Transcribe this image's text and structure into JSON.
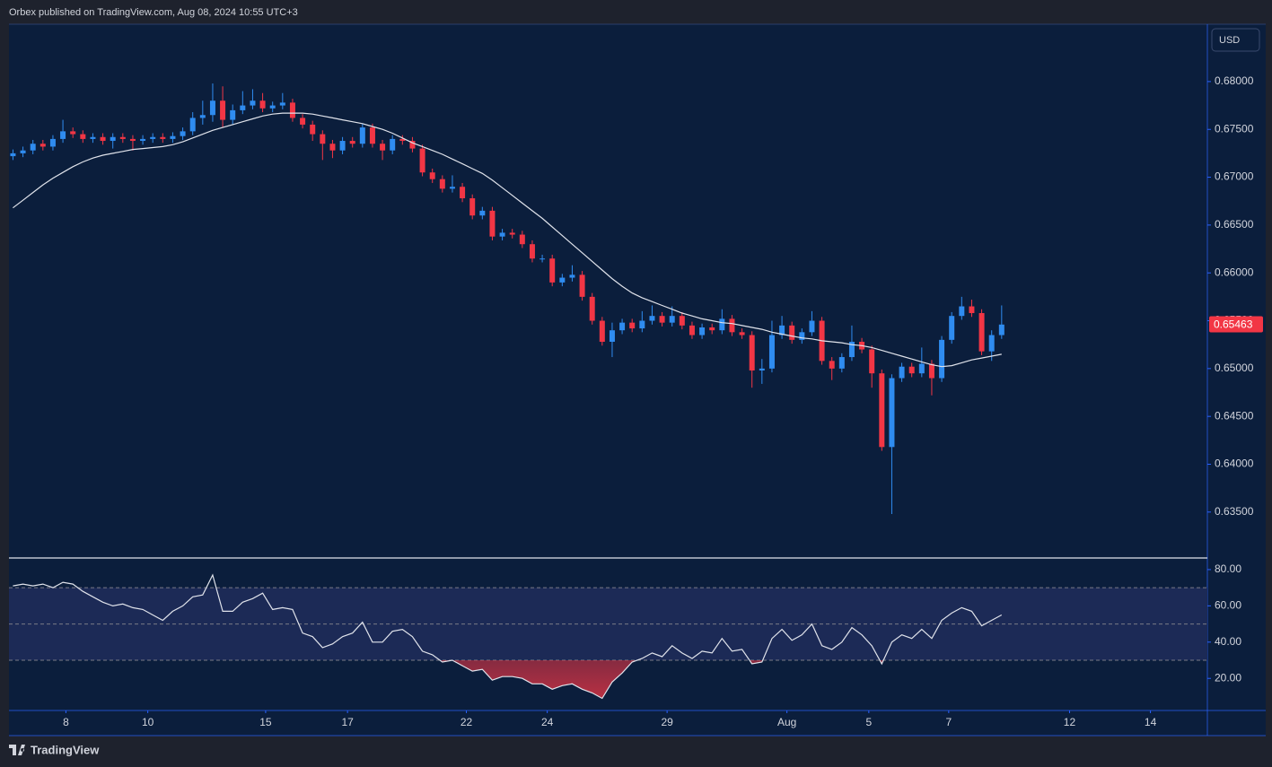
{
  "header": {
    "publisher": "Orbex published on TradingView.com, Aug 08, 2024 10:55 UTC+3",
    "currency": "USD"
  },
  "footer": {
    "brand": "TradingView"
  },
  "chart_data": [
    {
      "type": "candlestick",
      "up_color": "#2f8cf0",
      "down_color": "#f23645",
      "open": [
        0.6722,
        0.6725,
        0.6728,
        0.6735,
        0.6732,
        0.674,
        0.6748,
        0.6745,
        0.674,
        0.6742,
        0.6738,
        0.6742,
        0.674,
        0.6738,
        0.674,
        0.6742,
        0.674,
        0.6743,
        0.6748,
        0.6762,
        0.6765,
        0.678,
        0.676,
        0.677,
        0.6775,
        0.678,
        0.6772,
        0.6775,
        0.6778,
        0.6762,
        0.6755,
        0.6745,
        0.6735,
        0.6728,
        0.6738,
        0.6735,
        0.6752,
        0.6735,
        0.6728,
        0.674,
        0.6738,
        0.673,
        0.6705,
        0.6698,
        0.6688,
        0.669,
        0.6678,
        0.666,
        0.6665,
        0.6638,
        0.6642,
        0.664,
        0.663,
        0.6615,
        0.6615,
        0.659,
        0.6595,
        0.6598,
        0.6575,
        0.655,
        0.6528,
        0.654,
        0.6548,
        0.6542,
        0.655,
        0.6555,
        0.6548,
        0.6555,
        0.6545,
        0.6535,
        0.6543,
        0.654,
        0.6552,
        0.6538,
        0.6535,
        0.6498,
        0.65,
        0.6535,
        0.6545,
        0.653,
        0.6538,
        0.655,
        0.6508,
        0.65,
        0.6512,
        0.6528,
        0.652,
        0.6495,
        0.6418,
        0.649,
        0.6502,
        0.6495,
        0.6505,
        0.649,
        0.653,
        0.6555,
        0.6565,
        0.6558,
        0.6518,
        0.6535
      ],
      "high": [
        0.6729,
        0.6732,
        0.6739,
        0.6739,
        0.6744,
        0.676,
        0.6752,
        0.6749,
        0.6746,
        0.6746,
        0.6746,
        0.6746,
        0.6744,
        0.6744,
        0.6746,
        0.6746,
        0.6747,
        0.6752,
        0.6768,
        0.678,
        0.6798,
        0.6795,
        0.6776,
        0.679,
        0.6792,
        0.6788,
        0.6779,
        0.6788,
        0.6782,
        0.6766,
        0.6759,
        0.6749,
        0.6739,
        0.6742,
        0.6742,
        0.6756,
        0.6756,
        0.6739,
        0.6744,
        0.6744,
        0.6742,
        0.6734,
        0.6709,
        0.6702,
        0.6702,
        0.6694,
        0.6682,
        0.6669,
        0.6669,
        0.6646,
        0.6646,
        0.6644,
        0.6634,
        0.6619,
        0.6619,
        0.6599,
        0.6608,
        0.6602,
        0.6579,
        0.6554,
        0.6548,
        0.6552,
        0.6552,
        0.656,
        0.6566,
        0.6559,
        0.6565,
        0.6559,
        0.6549,
        0.6547,
        0.6547,
        0.6562,
        0.6556,
        0.6542,
        0.6539,
        0.651,
        0.655,
        0.6555,
        0.6549,
        0.6542,
        0.656,
        0.6554,
        0.6512,
        0.6516,
        0.6545,
        0.6532,
        0.6524,
        0.6499,
        0.6494,
        0.6506,
        0.6506,
        0.6522,
        0.6509,
        0.6534,
        0.6559,
        0.6575,
        0.6572,
        0.6562,
        0.654,
        0.6566
      ],
      "low": [
        0.6718,
        0.6721,
        0.6724,
        0.6728,
        0.6728,
        0.6736,
        0.6741,
        0.6736,
        0.6736,
        0.6734,
        0.673,
        0.6736,
        0.6728,
        0.6734,
        0.6736,
        0.6736,
        0.6736,
        0.6739,
        0.6744,
        0.6755,
        0.6758,
        0.6752,
        0.6755,
        0.6766,
        0.6771,
        0.6768,
        0.6768,
        0.6771,
        0.6758,
        0.6751,
        0.6738,
        0.6718,
        0.672,
        0.6724,
        0.6731,
        0.6731,
        0.6731,
        0.6718,
        0.6724,
        0.6734,
        0.6726,
        0.6701,
        0.6694,
        0.6684,
        0.6684,
        0.6674,
        0.6656,
        0.6656,
        0.6634,
        0.6634,
        0.6636,
        0.6626,
        0.6611,
        0.6611,
        0.6586,
        0.6586,
        0.6591,
        0.6571,
        0.6546,
        0.6524,
        0.6512,
        0.6536,
        0.6538,
        0.6538,
        0.6546,
        0.6544,
        0.6544,
        0.6541,
        0.6531,
        0.6531,
        0.6536,
        0.6536,
        0.6534,
        0.6531,
        0.648,
        0.6484,
        0.6496,
        0.6531,
        0.6526,
        0.6526,
        0.6534,
        0.6504,
        0.6488,
        0.6496,
        0.6508,
        0.6516,
        0.648,
        0.6414,
        0.6348,
        0.6486,
        0.6491,
        0.6491,
        0.6472,
        0.6486,
        0.6526,
        0.6551,
        0.6554,
        0.6514,
        0.6508,
        0.6531
      ],
      "close": [
        0.6725,
        0.6728,
        0.6735,
        0.6732,
        0.674,
        0.6748,
        0.6745,
        0.674,
        0.6742,
        0.6738,
        0.6742,
        0.674,
        0.6738,
        0.674,
        0.6742,
        0.674,
        0.6743,
        0.6748,
        0.6762,
        0.6765,
        0.678,
        0.676,
        0.677,
        0.6775,
        0.678,
        0.6772,
        0.6775,
        0.6778,
        0.6762,
        0.6755,
        0.6745,
        0.6735,
        0.6728,
        0.6738,
        0.6735,
        0.6752,
        0.6735,
        0.6728,
        0.674,
        0.6738,
        0.673,
        0.6705,
        0.6698,
        0.6688,
        0.669,
        0.6678,
        0.666,
        0.6665,
        0.6638,
        0.6642,
        0.664,
        0.663,
        0.6615,
        0.6615,
        0.659,
        0.6595,
        0.6598,
        0.6575,
        0.655,
        0.6528,
        0.654,
        0.6548,
        0.6542,
        0.655,
        0.6555,
        0.6548,
        0.6555,
        0.6545,
        0.6535,
        0.6543,
        0.654,
        0.6552,
        0.6538,
        0.6535,
        0.6498,
        0.65,
        0.6535,
        0.6545,
        0.653,
        0.6538,
        0.655,
        0.6508,
        0.65,
        0.6512,
        0.6528,
        0.652,
        0.6495,
        0.6418,
        0.649,
        0.6502,
        0.6495,
        0.6505,
        0.649,
        0.653,
        0.6555,
        0.6565,
        0.6558,
        0.6518,
        0.6535,
        0.6546
      ],
      "overlays": [
        {
          "color": "#e0e3eb",
          "values": [
            0.6668,
            0.6676,
            0.6684,
            0.6692,
            0.6699,
            0.6705,
            0.6711,
            0.6716,
            0.672,
            0.6723,
            0.6725,
            0.6727,
            0.6729,
            0.673,
            0.6731,
            0.6732,
            0.6734,
            0.6737,
            0.6741,
            0.6745,
            0.6749,
            0.6752,
            0.6755,
            0.6758,
            0.6761,
            0.6764,
            0.6766,
            0.6767,
            0.6767,
            0.6767,
            0.6766,
            0.6764,
            0.6762,
            0.676,
            0.6758,
            0.6756,
            0.6753,
            0.675,
            0.6746,
            0.6741,
            0.6736,
            0.6732,
            0.6728,
            0.6724,
            0.6719,
            0.6714,
            0.6709,
            0.6704,
            0.6697,
            0.6689,
            0.6681,
            0.6673,
            0.6665,
            0.6657,
            0.6648,
            0.6639,
            0.663,
            0.6621,
            0.6612,
            0.6603,
            0.6594,
            0.6586,
            0.6579,
            0.6574,
            0.657,
            0.6566,
            0.6562,
            0.6558,
            0.6555,
            0.6552,
            0.655,
            0.6548,
            0.6547,
            0.6545,
            0.6543,
            0.6541,
            0.6538,
            0.6536,
            0.6534,
            0.6532,
            0.6531,
            0.6529,
            0.6528,
            0.6527,
            0.6525,
            0.6524,
            0.6522,
            0.6519,
            0.6516,
            0.6513,
            0.651,
            0.6507,
            0.6504,
            0.6502,
            0.6503,
            0.6506,
            0.6509,
            0.6511,
            0.6513,
            0.6515
          ]
        }
      ],
      "last_price": {
        "value": 0.65463,
        "label": "0.65463"
      },
      "xlim": [
        -0.4,
        119.6
      ],
      "xticks": [
        {
          "value": 5.3,
          "label": "8"
        },
        {
          "value": 13.5,
          "label": "10"
        },
        {
          "value": 25.3,
          "label": "15"
        },
        {
          "value": 33.5,
          "label": "17"
        },
        {
          "value": 45.4,
          "label": "22"
        },
        {
          "value": 53.5,
          "label": "24"
        },
        {
          "value": 65.5,
          "label": "29"
        },
        {
          "value": 77.5,
          "label": "Aug"
        },
        {
          "value": 85.7,
          "label": "5"
        },
        {
          "value": 93.7,
          "label": "7"
        },
        {
          "value": 105.8,
          "label": "12"
        },
        {
          "value": 113.9,
          "label": "14"
        }
      ],
      "ylim": [
        0.6302,
        0.6859
      ],
      "yticks": [
        {
          "value": 0.635,
          "label": "0.63500"
        },
        {
          "value": 0.64,
          "label": "0.64000"
        },
        {
          "value": 0.645,
          "label": "0.64500"
        },
        {
          "value": 0.65,
          "label": "0.65000"
        },
        {
          "value": 0.655,
          "label": "0.65500"
        },
        {
          "value": 0.66,
          "label": "0.66000"
        },
        {
          "value": 0.665,
          "label": "0.66500"
        },
        {
          "value": 0.67,
          "label": "0.67000"
        },
        {
          "value": 0.675,
          "label": "0.67500"
        },
        {
          "value": 0.68,
          "label": "0.68000"
        }
      ],
      "grid": false
    },
    {
      "type": "line",
      "color": "#e0e3eb",
      "values": [
        71,
        72,
        71,
        72,
        70,
        73,
        72,
        68,
        65,
        62,
        60,
        61,
        59,
        58,
        55,
        52,
        57,
        60,
        65,
        66,
        77,
        57,
        57,
        62,
        64,
        67,
        58,
        59,
        58,
        45,
        43,
        37,
        39,
        43,
        45,
        51,
        40,
        40,
        46,
        47,
        43,
        35,
        33,
        29,
        30,
        27,
        24,
        25,
        19,
        21,
        21,
        20,
        17,
        17,
        14,
        16,
        17,
        14,
        12,
        9,
        18,
        23,
        29,
        31,
        34,
        32,
        38,
        34,
        31,
        35,
        34,
        42,
        35,
        36,
        28,
        29,
        42,
        47,
        41,
        44,
        50,
        38,
        36,
        40,
        48,
        44,
        38,
        28,
        40,
        44,
        42,
        47,
        42,
        52,
        56,
        59,
        57,
        49,
        52,
        55
      ],
      "levels": [
        30,
        50,
        70
      ],
      "band_color": "#1c2a56",
      "oversold_color": "#f23645",
      "ylim": [
        2.3,
        85.9
      ],
      "yticks": [
        {
          "value": 20,
          "label": "20.00"
        },
        {
          "value": 40,
          "label": "40.00"
        },
        {
          "value": 60,
          "label": "60.00"
        },
        {
          "value": 80,
          "label": "80.00"
        }
      ]
    }
  ]
}
